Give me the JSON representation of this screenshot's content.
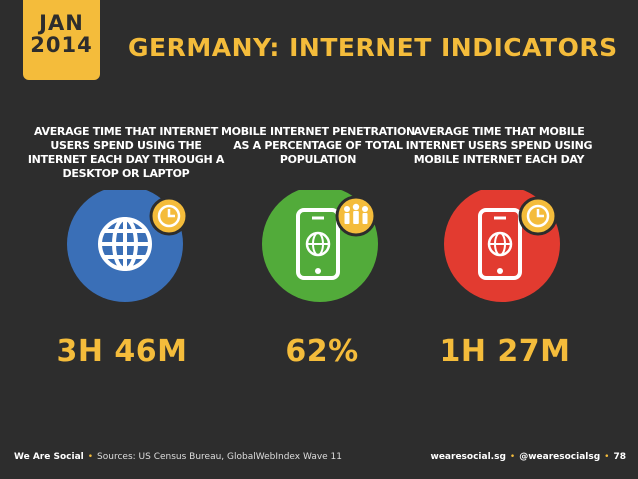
{
  "date": {
    "month": "JAN",
    "year": "2014"
  },
  "title": "GERMANY: INTERNET INDICATORS",
  "indicators": [
    {
      "description": "AVERAGE TIME THAT INTERNET USERS SPEND USING THE INTERNET EACH DAY THROUGH A DESKTOP OR LAPTOP",
      "value": "3H 46M",
      "icon": "globe-icon",
      "badge_icon": "clock-icon",
      "color": "#3a6fb7"
    },
    {
      "description": "MOBILE INTERNET PENETRATION AS A PERCENTAGE OF TOTAL POPULATION",
      "value": "62%",
      "icon": "mobile-globe-icon",
      "badge_icon": "people-icon",
      "color": "#52ab3a"
    },
    {
      "description": "AVERAGE TIME THAT MOBILE INTERNET USERS SPEND USING MOBILE INTERNET EACH DAY",
      "value": "1H 27M",
      "icon": "mobile-globe-icon",
      "badge_icon": "clock-icon",
      "color": "#e23b30"
    }
  ],
  "colors": {
    "accent": "#f4bc3b",
    "background": "#2d2d2d"
  },
  "footer": {
    "brand": "We Are Social",
    "sources": "Sources: US Census Bureau, GlobalWebIndex Wave 11",
    "site": "wearesocial.sg",
    "handle": "@wearesocialsg",
    "page": "78"
  }
}
